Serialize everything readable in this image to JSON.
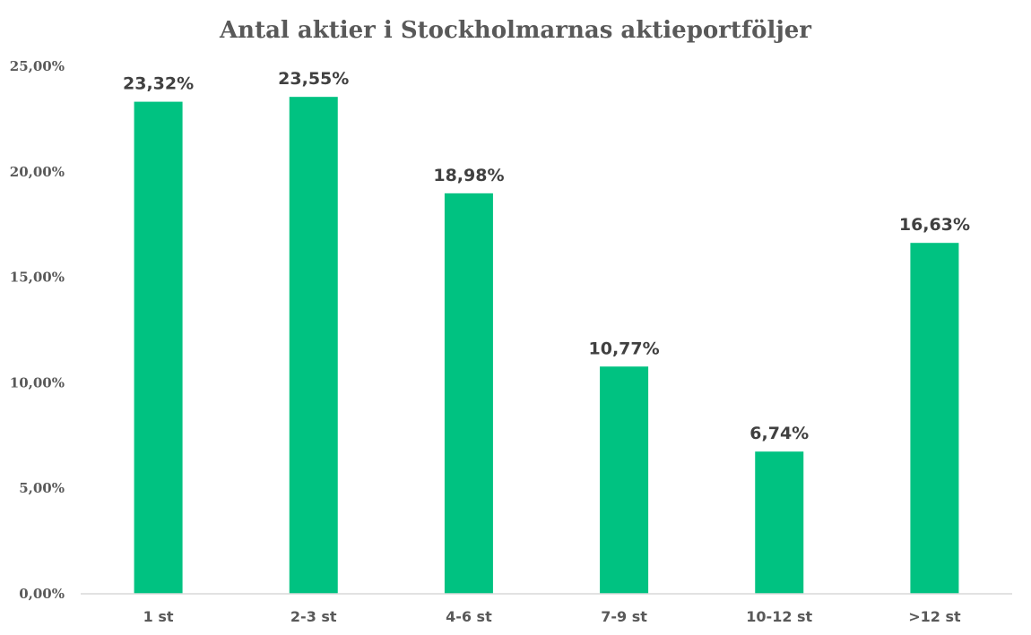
{
  "chart_data": {
    "type": "bar",
    "title": "Antal aktier i Stockholmarnas aktieportföljer",
    "categories": [
      "1 st",
      "2-3 st",
      "4-6 st",
      "7-9 st",
      "10-12 st",
      ">12 st"
    ],
    "values": [
      23.32,
      23.55,
      18.98,
      10.77,
      6.74,
      16.63
    ],
    "data_labels": [
      "23,32%",
      "23,55%",
      "18,98%",
      "10,77%",
      "6,74%",
      "16,63%"
    ],
    "ylim": [
      0,
      25
    ],
    "yticks": [
      0,
      5,
      10,
      15,
      20,
      25
    ],
    "ytick_labels": [
      "0,00%",
      "5,00%",
      "10,00%",
      "15,00%",
      "20,00%",
      "25,00%"
    ],
    "grid": false,
    "legend": "none",
    "colors": {
      "bar": "#00c281",
      "axis": "#d9d9d9",
      "text": "#595959",
      "label": "#404040"
    }
  }
}
